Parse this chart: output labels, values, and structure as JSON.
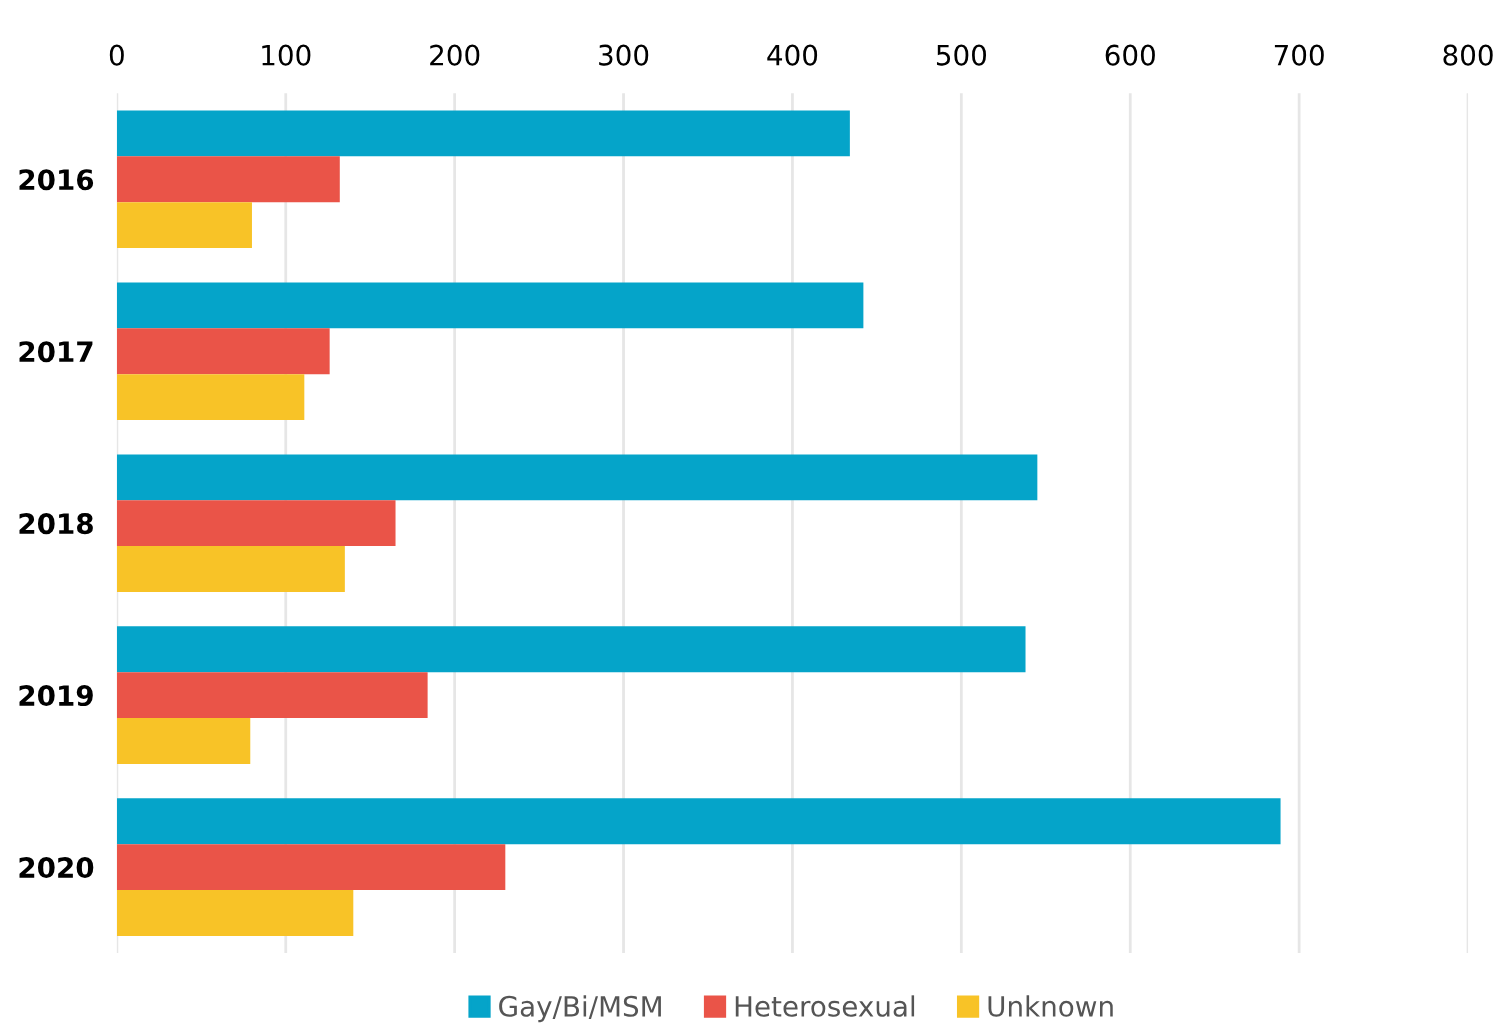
{
  "chart_data": {
    "type": "bar",
    "orientation": "horizontal",
    "categories": [
      "2016",
      "2017",
      "2018",
      "2019",
      "2020"
    ],
    "series": [
      {
        "name": "Gay/Bi/MSM",
        "color": "#05a4c9",
        "values": [
          434,
          442,
          545,
          538,
          689
        ]
      },
      {
        "name": "Heterosexual",
        "color": "#ea5448",
        "values": [
          132,
          126,
          165,
          184,
          230
        ]
      },
      {
        "name": "Unknown",
        "color": "#f8c327",
        "values": [
          80,
          111,
          135,
          79,
          140
        ]
      }
    ],
    "xlim": [
      0,
      800
    ],
    "xticks": [
      0,
      100,
      200,
      300,
      400,
      500,
      600,
      700,
      800
    ],
    "grid": "x",
    "legend": "bottom"
  }
}
